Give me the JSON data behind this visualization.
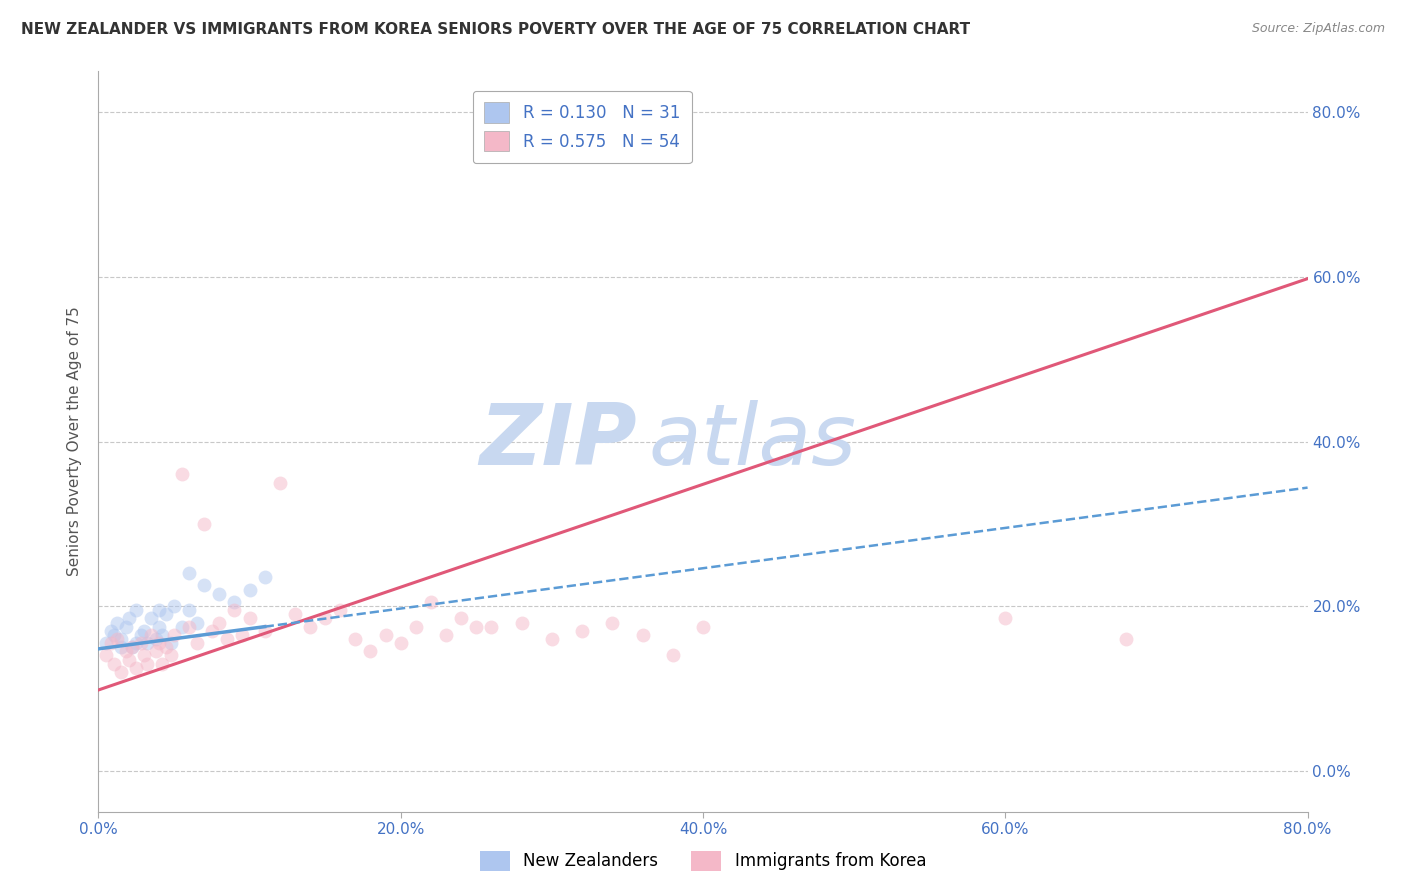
{
  "title": "NEW ZEALANDER VS IMMIGRANTS FROM KOREA SENIORS POVERTY OVER THE AGE OF 75 CORRELATION CHART",
  "source": "Source: ZipAtlas.com",
  "ylabel": "Seniors Poverty Over the Age of 75",
  "xlim": [
    0.0,
    0.8
  ],
  "ylim": [
    -0.05,
    0.85
  ],
  "x_ticks": [
    0.0,
    0.2,
    0.4,
    0.6,
    0.8
  ],
  "x_tick_labels": [
    "0.0%",
    "20.0%",
    "40.0%",
    "60.0%",
    "80.0%"
  ],
  "y_ticks": [
    0.0,
    0.2,
    0.4,
    0.6,
    0.8
  ],
  "y_tick_labels": [
    "0.0%",
    "20.0%",
    "40.0%",
    "60.0%",
    "80.0%"
  ],
  "legend_entries": [
    {
      "label": "R = 0.130   N = 31",
      "color": "#aec6ef"
    },
    {
      "label": "R = 0.575   N = 54",
      "color": "#f4b8c8"
    }
  ],
  "bottom_legend": [
    {
      "label": "New Zealanders",
      "color": "#aec6ef"
    },
    {
      "label": "Immigrants from Korea",
      "color": "#f4b8c8"
    }
  ],
  "nz_scatter_x": [
    0.005,
    0.008,
    0.01,
    0.012,
    0.015,
    0.018,
    0.02,
    0.022,
    0.025,
    0.028,
    0.03,
    0.032,
    0.035,
    0.038,
    0.04,
    0.042,
    0.045,
    0.048,
    0.05,
    0.055,
    0.06,
    0.065,
    0.07,
    0.08,
    0.09,
    0.1,
    0.11,
    0.04,
    0.025,
    0.015,
    0.06
  ],
  "nz_scatter_y": [
    0.155,
    0.17,
    0.165,
    0.18,
    0.16,
    0.175,
    0.185,
    0.15,
    0.195,
    0.165,
    0.17,
    0.155,
    0.185,
    0.16,
    0.175,
    0.165,
    0.19,
    0.155,
    0.2,
    0.175,
    0.195,
    0.18,
    0.225,
    0.215,
    0.205,
    0.22,
    0.235,
    0.195,
    0.155,
    0.15,
    0.24
  ],
  "korea_scatter_x": [
    0.005,
    0.008,
    0.01,
    0.012,
    0.015,
    0.018,
    0.02,
    0.022,
    0.025,
    0.028,
    0.03,
    0.032,
    0.035,
    0.038,
    0.04,
    0.042,
    0.045,
    0.048,
    0.05,
    0.055,
    0.06,
    0.065,
    0.07,
    0.075,
    0.08,
    0.085,
    0.09,
    0.095,
    0.1,
    0.11,
    0.12,
    0.13,
    0.14,
    0.15,
    0.16,
    0.17,
    0.18,
    0.19,
    0.2,
    0.21,
    0.22,
    0.23,
    0.24,
    0.25,
    0.26,
    0.28,
    0.3,
    0.32,
    0.34,
    0.36,
    0.38,
    0.4,
    0.6,
    0.68
  ],
  "korea_scatter_y": [
    0.14,
    0.155,
    0.13,
    0.16,
    0.12,
    0.145,
    0.135,
    0.15,
    0.125,
    0.155,
    0.14,
    0.13,
    0.165,
    0.145,
    0.155,
    0.13,
    0.15,
    0.14,
    0.165,
    0.36,
    0.175,
    0.155,
    0.3,
    0.17,
    0.18,
    0.16,
    0.195,
    0.165,
    0.185,
    0.17,
    0.35,
    0.19,
    0.175,
    0.185,
    0.195,
    0.16,
    0.145,
    0.165,
    0.155,
    0.175,
    0.205,
    0.165,
    0.185,
    0.175,
    0.175,
    0.18,
    0.16,
    0.17,
    0.18,
    0.165,
    0.14,
    0.175,
    0.185,
    0.16
  ],
  "nz_color": "#aec6ef",
  "nz_line_color": "#5b9bd5",
  "korea_color": "#f4b8c8",
  "korea_line_color": "#e05878",
  "background_color": "#ffffff",
  "grid_color": "#c8c8c8",
  "title_color": "#333333",
  "title_fontsize": 11,
  "axis_label_color": "#555555",
  "tick_color": "#4472c4",
  "watermark_zip_color": "#c8d8f0",
  "watermark_atlas_color": "#c8d8f0",
  "scatter_size": 100,
  "scatter_alpha": 0.5,
  "nz_line_intercept": 0.148,
  "nz_line_slope": 0.245,
  "korea_line_intercept": 0.098,
  "korea_line_slope": 0.625
}
